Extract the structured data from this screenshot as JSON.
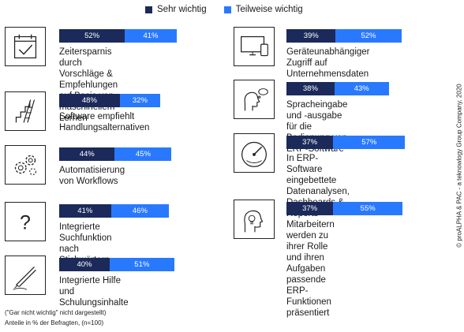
{
  "chart_data": {
    "type": "bar",
    "legend_position": "top",
    "colors": {
      "sehr_wichtig": "#1b2a5a",
      "teilweise_wichtig": "#2979ff"
    },
    "series": [
      {
        "name": "Sehr wichtig",
        "values": [
          52,
          48,
          44,
          41,
          40,
          39,
          38,
          37,
          37
        ]
      },
      {
        "name": "Teilweise wichtig",
        "values": [
          41,
          32,
          45,
          46,
          51,
          52,
          43,
          57,
          55
        ]
      }
    ],
    "categories": [
      "Zeitersparnis durch Vorschläge & Empfehlungen auf Basis von maschinellem Lernen",
      "Software empfiehlt Handlungsalternativen",
      "Automatisierung von Workflows",
      "Integrierte Suchfunktion nach Stichwörtern",
      "Integrierte Hilfe und Schulungsinhalte",
      "Geräteunabhängiger Zugriff auf Unternehmensdaten",
      "Spracheingabe und -ausgabe für die Bedienung von ERP-Software",
      "In ERP-Software eingebettete Datenanalysen, Dashboards & Reports",
      "Mitarbeitern werden zu ihrer Rolle und ihren Aufgaben passende ERP-Funktionen präsentiert"
    ]
  },
  "legend": {
    "sehr_wichtig": "Sehr wichtig",
    "teilweise_wichtig": "Teilweise wichtig"
  },
  "items": [
    {
      "lines": [
        "Zeitersparnis durch Vorschläge &",
        "Empfehlungen auf Basis von",
        "maschinellem Lernen"
      ],
      "sehr": "52%",
      "teil": "41%",
      "icon": "calendar-check-icon"
    },
    {
      "lines": [
        "Software empfiehlt",
        "Handlungsalternativen"
      ],
      "sehr": "48%",
      "teil": "32%",
      "icon": "staircase-icon"
    },
    {
      "lines": [
        "Automatisierung von Workflows"
      ],
      "sehr": "44%",
      "teil": "45%",
      "icon": "gears-icon"
    },
    {
      "lines": [
        "Integrierte Suchfunktion nach",
        "Stichwörtern"
      ],
      "sehr": "41%",
      "teil": "46%",
      "icon": "question-mark-icon"
    },
    {
      "lines": [
        "Integrierte Hilfe und Schulungsinhalte"
      ],
      "sehr": "40%",
      "teil": "51%",
      "icon": "pen-icon"
    },
    {
      "lines": [
        "Geräteunabhängiger Zugriff auf",
        "Unternehmensdaten"
      ],
      "sehr": "39%",
      "teil": "52%",
      "icon": "devices-icon"
    },
    {
      "lines": [
        "Spracheingabe und -ausgabe für die",
        "Bedienung von ERP-Software"
      ],
      "sehr": "38%",
      "teil": "43%",
      "icon": "speaking-head-icon"
    },
    {
      "lines": [
        "In ERP-Software eingebettete",
        "Datenanalysen, Dashboards &",
        "Reports"
      ],
      "sehr": "37%",
      "teil": "57%",
      "icon": "gauge-icon"
    },
    {
      "lines": [
        "Mitarbeitern werden zu ihrer Rolle",
        "und ihren Aufgaben passende ERP-",
        "Funktionen präsentiert"
      ],
      "sehr": "37%",
      "teil": "55%",
      "icon": "lightbulb-head-icon"
    }
  ],
  "footnote": "(\"Gar nicht wichtig\" nicht dargestellt)",
  "base_note": "Anteile in % der Befragten, (n=100)",
  "copyright": "© proALPHA & PAC - a teknowlogy Group Company, 2020"
}
